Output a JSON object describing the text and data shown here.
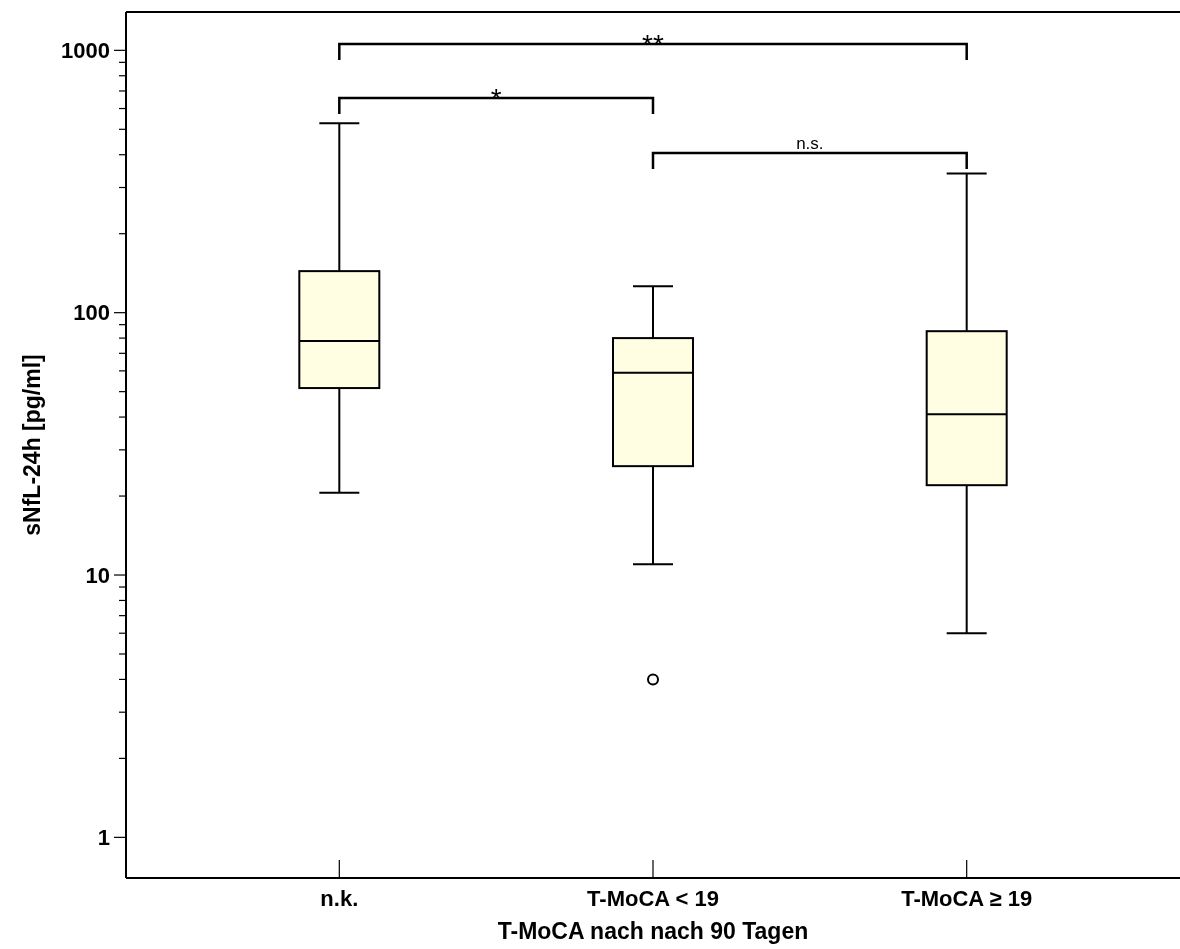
{
  "chart_data": {
    "type": "box",
    "xlabel": "T-MoCA nach nach 90 Tagen",
    "ylabel": "sNfL-24h [pg/ml]",
    "categories": [
      "n.k.",
      "T-MoCA < 19",
      "T-MoCA ≥ 19"
    ],
    "color": "#fffee3",
    "log": true,
    "grid": false,
    "ylim": [
      0.7,
      1400
    ],
    "yticks": [
      1,
      {
        "value": 2,
        "label": null
      },
      {
        "value": 3,
        "label": null
      },
      {
        "value": 4,
        "label": null
      },
      {
        "value": 5,
        "label": null
      },
      {
        "value": 6,
        "label": null
      },
      {
        "value": 7,
        "label": null
      },
      {
        "value": 8,
        "label": null
      },
      {
        "value": 9,
        "label": null
      },
      10,
      {
        "value": 20,
        "label": null
      },
      {
        "value": 30,
        "label": null
      },
      {
        "value": 40,
        "label": null
      },
      {
        "value": 50,
        "label": null
      },
      {
        "value": 60,
        "label": null
      },
      {
        "value": 70,
        "label": null
      },
      {
        "value": 80,
        "label": null
      },
      {
        "value": 90,
        "label": null
      },
      100,
      {
        "value": 200,
        "label": null
      },
      {
        "value": 300,
        "label": null
      },
      {
        "value": 400,
        "label": null
      },
      {
        "value": 500,
        "label": null
      },
      {
        "value": 600,
        "label": null
      },
      {
        "value": 700,
        "label": null
      },
      {
        "value": 800,
        "label": null
      },
      {
        "value": 900,
        "label": null
      },
      1000
    ],
    "boxes": [
      {
        "low": 20.6,
        "q1": 51.6,
        "median": 78,
        "q3": 144,
        "high": 527
      },
      {
        "low": 11,
        "q1": 26,
        "median": 59,
        "q3": 80,
        "high": 126,
        "outliers": [
          4
        ]
      },
      {
        "low": 6,
        "q1": 22,
        "median": 41,
        "q3": 85,
        "high": 339
      }
    ],
    "annotations": [
      "**",
      "*",
      "n.s."
    ]
  }
}
